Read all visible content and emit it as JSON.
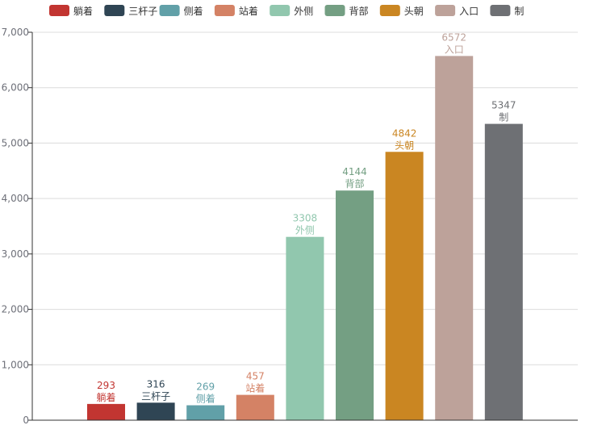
{
  "chart_data": {
    "type": "bar",
    "title": "",
    "xlabel": "",
    "ylabel": "",
    "ylim": [
      0,
      7000
    ],
    "yticks": [
      0,
      1000,
      2000,
      3000,
      4000,
      5000,
      6000,
      7000
    ],
    "ytick_labels": [
      "0",
      "1,000",
      "2,000",
      "3,000",
      "4,000",
      "5,000",
      "6,000",
      "7,000"
    ],
    "grid": true,
    "legend_position": "top",
    "categories": [
      "躺着",
      "三杆子",
      "侧着",
      "站着",
      "外侧",
      "背部",
      "头朝",
      "入口",
      "制"
    ],
    "values": [
      293,
      316,
      269,
      457,
      3308,
      4144,
      4842,
      6572,
      5347
    ],
    "colors": [
      "#c23531",
      "#2f4554",
      "#61a0a8",
      "#d48265",
      "#91c7ae",
      "#749f83",
      "#ca8622",
      "#bda29a",
      "#6e7074"
    ]
  }
}
